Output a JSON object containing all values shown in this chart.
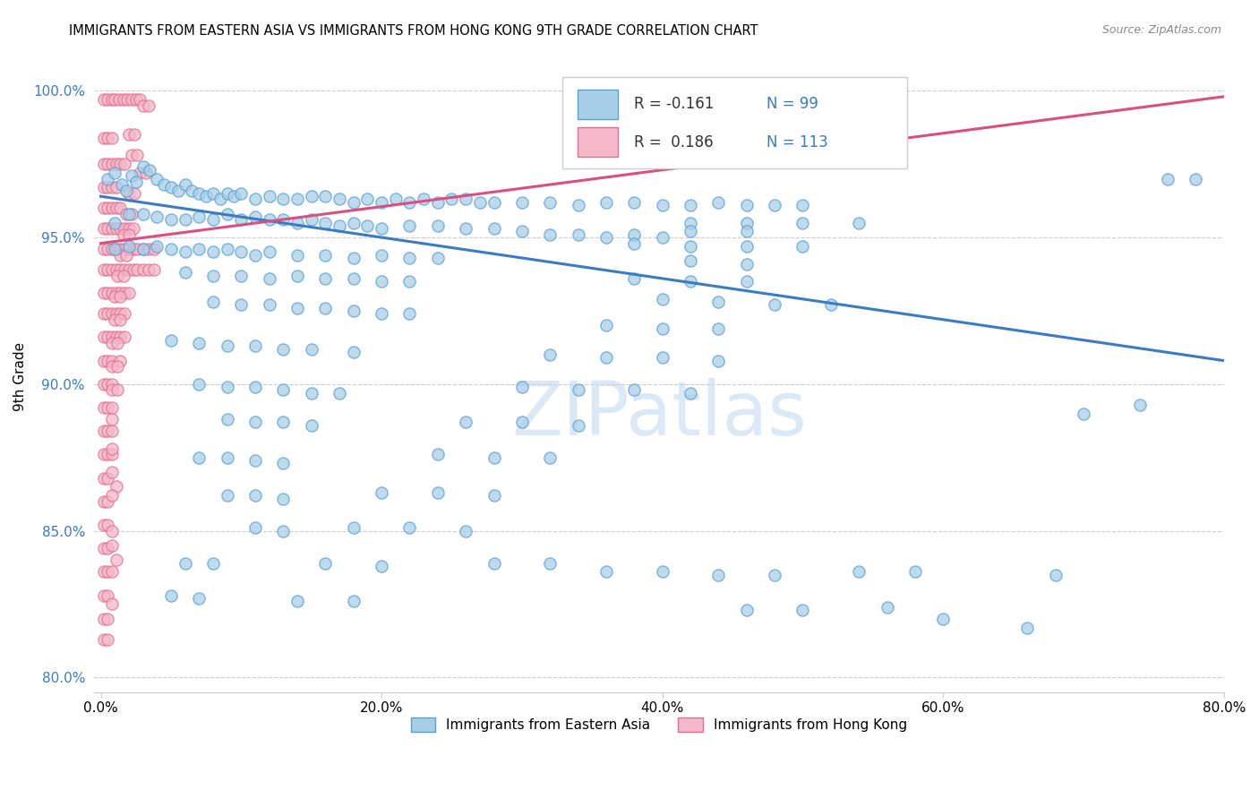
{
  "title": "IMMIGRANTS FROM EASTERN ASIA VS IMMIGRANTS FROM HONG KONG 9TH GRADE CORRELATION CHART",
  "source": "Source: ZipAtlas.com",
  "xlabel_ticks": [
    "0.0%",
    "20.0%",
    "40.0%",
    "60.0%",
    "80.0%"
  ],
  "xlabel_tick_vals": [
    0.0,
    0.2,
    0.4,
    0.6,
    0.8
  ],
  "ylabel_ticks": [
    "80.0%",
    "85.0%",
    "90.0%",
    "95.0%",
    "100.0%"
  ],
  "ylabel_tick_vals": [
    0.8,
    0.85,
    0.9,
    0.95,
    1.0
  ],
  "ylabel_label": "9th Grade",
  "legend_blue_r": "-0.161",
  "legend_blue_n": "99",
  "legend_pink_r": "0.186",
  "legend_pink_n": "113",
  "legend_blue_label": "Immigrants from Eastern Asia",
  "legend_pink_label": "Immigrants from Hong Kong",
  "blue_color": "#a8cfe8",
  "pink_color": "#f4b8ca",
  "blue_edge_color": "#5b9fd4",
  "pink_edge_color": "#e07090",
  "blue_line_color": "#3a7cbf",
  "pink_line_color": "#d95080",
  "watermark": "ZIPatlas",
  "blue_trend_x": [
    0.0,
    0.8
  ],
  "blue_trend_y": [
    0.964,
    0.908
  ],
  "pink_trend_x": [
    0.0,
    0.8
  ],
  "pink_trend_y": [
    0.948,
    0.998
  ],
  "blue_points": [
    [
      0.005,
      0.97
    ],
    [
      0.01,
      0.972
    ],
    [
      0.015,
      0.968
    ],
    [
      0.018,
      0.966
    ],
    [
      0.022,
      0.971
    ],
    [
      0.025,
      0.969
    ],
    [
      0.03,
      0.974
    ],
    [
      0.035,
      0.973
    ],
    [
      0.04,
      0.97
    ],
    [
      0.045,
      0.968
    ],
    [
      0.05,
      0.967
    ],
    [
      0.055,
      0.966
    ],
    [
      0.06,
      0.968
    ],
    [
      0.065,
      0.966
    ],
    [
      0.07,
      0.965
    ],
    [
      0.075,
      0.964
    ],
    [
      0.08,
      0.965
    ],
    [
      0.085,
      0.963
    ],
    [
      0.09,
      0.965
    ],
    [
      0.095,
      0.964
    ],
    [
      0.1,
      0.965
    ],
    [
      0.11,
      0.963
    ],
    [
      0.12,
      0.964
    ],
    [
      0.13,
      0.963
    ],
    [
      0.14,
      0.963
    ],
    [
      0.15,
      0.964
    ],
    [
      0.16,
      0.964
    ],
    [
      0.17,
      0.963
    ],
    [
      0.18,
      0.962
    ],
    [
      0.19,
      0.963
    ],
    [
      0.2,
      0.962
    ],
    [
      0.21,
      0.963
    ],
    [
      0.22,
      0.962
    ],
    [
      0.23,
      0.963
    ],
    [
      0.24,
      0.962
    ],
    [
      0.25,
      0.963
    ],
    [
      0.26,
      0.963
    ],
    [
      0.27,
      0.962
    ],
    [
      0.28,
      0.962
    ],
    [
      0.3,
      0.962
    ],
    [
      0.32,
      0.962
    ],
    [
      0.34,
      0.961
    ],
    [
      0.36,
      0.962
    ],
    [
      0.38,
      0.962
    ],
    [
      0.4,
      0.961
    ],
    [
      0.42,
      0.961
    ],
    [
      0.44,
      0.962
    ],
    [
      0.46,
      0.961
    ],
    [
      0.48,
      0.961
    ],
    [
      0.5,
      0.961
    ],
    [
      0.01,
      0.955
    ],
    [
      0.02,
      0.958
    ],
    [
      0.03,
      0.958
    ],
    [
      0.04,
      0.957
    ],
    [
      0.05,
      0.956
    ],
    [
      0.06,
      0.956
    ],
    [
      0.07,
      0.957
    ],
    [
      0.08,
      0.956
    ],
    [
      0.09,
      0.958
    ],
    [
      0.1,
      0.956
    ],
    [
      0.11,
      0.957
    ],
    [
      0.12,
      0.956
    ],
    [
      0.13,
      0.956
    ],
    [
      0.14,
      0.955
    ],
    [
      0.15,
      0.956
    ],
    [
      0.16,
      0.955
    ],
    [
      0.17,
      0.954
    ],
    [
      0.18,
      0.955
    ],
    [
      0.19,
      0.954
    ],
    [
      0.2,
      0.953
    ],
    [
      0.22,
      0.954
    ],
    [
      0.24,
      0.954
    ],
    [
      0.26,
      0.953
    ],
    [
      0.28,
      0.953
    ],
    [
      0.3,
      0.952
    ],
    [
      0.32,
      0.951
    ],
    [
      0.34,
      0.951
    ],
    [
      0.36,
      0.95
    ],
    [
      0.38,
      0.951
    ],
    [
      0.4,
      0.95
    ],
    [
      0.01,
      0.946
    ],
    [
      0.02,
      0.947
    ],
    [
      0.03,
      0.946
    ],
    [
      0.04,
      0.947
    ],
    [
      0.05,
      0.946
    ],
    [
      0.06,
      0.945
    ],
    [
      0.07,
      0.946
    ],
    [
      0.08,
      0.945
    ],
    [
      0.09,
      0.946
    ],
    [
      0.1,
      0.945
    ],
    [
      0.11,
      0.944
    ],
    [
      0.12,
      0.945
    ],
    [
      0.14,
      0.944
    ],
    [
      0.16,
      0.944
    ],
    [
      0.18,
      0.943
    ],
    [
      0.2,
      0.944
    ],
    [
      0.22,
      0.943
    ],
    [
      0.24,
      0.943
    ],
    [
      0.06,
      0.938
    ],
    [
      0.08,
      0.937
    ],
    [
      0.1,
      0.937
    ],
    [
      0.12,
      0.936
    ],
    [
      0.14,
      0.937
    ],
    [
      0.16,
      0.936
    ],
    [
      0.18,
      0.936
    ],
    [
      0.2,
      0.935
    ],
    [
      0.22,
      0.935
    ],
    [
      0.08,
      0.928
    ],
    [
      0.1,
      0.927
    ],
    [
      0.12,
      0.927
    ],
    [
      0.14,
      0.926
    ],
    [
      0.16,
      0.926
    ],
    [
      0.18,
      0.925
    ],
    [
      0.2,
      0.924
    ],
    [
      0.22,
      0.924
    ],
    [
      0.05,
      0.915
    ],
    [
      0.07,
      0.914
    ],
    [
      0.09,
      0.913
    ],
    [
      0.11,
      0.913
    ],
    [
      0.13,
      0.912
    ],
    [
      0.15,
      0.912
    ],
    [
      0.18,
      0.911
    ],
    [
      0.07,
      0.9
    ],
    [
      0.09,
      0.899
    ],
    [
      0.11,
      0.899
    ],
    [
      0.13,
      0.898
    ],
    [
      0.15,
      0.897
    ],
    [
      0.17,
      0.897
    ],
    [
      0.09,
      0.888
    ],
    [
      0.11,
      0.887
    ],
    [
      0.13,
      0.887
    ],
    [
      0.15,
      0.886
    ],
    [
      0.07,
      0.875
    ],
    [
      0.09,
      0.875
    ],
    [
      0.11,
      0.874
    ],
    [
      0.13,
      0.873
    ],
    [
      0.09,
      0.862
    ],
    [
      0.11,
      0.862
    ],
    [
      0.13,
      0.861
    ],
    [
      0.11,
      0.851
    ],
    [
      0.13,
      0.85
    ],
    [
      0.06,
      0.839
    ],
    [
      0.08,
      0.839
    ],
    [
      0.05,
      0.828
    ],
    [
      0.07,
      0.827
    ],
    [
      0.42,
      0.955
    ],
    [
      0.46,
      0.955
    ],
    [
      0.5,
      0.955
    ],
    [
      0.54,
      0.955
    ],
    [
      0.42,
      0.952
    ],
    [
      0.46,
      0.952
    ],
    [
      0.38,
      0.948
    ],
    [
      0.42,
      0.947
    ],
    [
      0.46,
      0.947
    ],
    [
      0.5,
      0.947
    ],
    [
      0.42,
      0.942
    ],
    [
      0.46,
      0.941
    ],
    [
      0.38,
      0.936
    ],
    [
      0.42,
      0.935
    ],
    [
      0.46,
      0.935
    ],
    [
      0.4,
      0.929
    ],
    [
      0.44,
      0.928
    ],
    [
      0.48,
      0.927
    ],
    [
      0.52,
      0.927
    ],
    [
      0.36,
      0.92
    ],
    [
      0.4,
      0.919
    ],
    [
      0.44,
      0.919
    ],
    [
      0.32,
      0.91
    ],
    [
      0.36,
      0.909
    ],
    [
      0.4,
      0.909
    ],
    [
      0.44,
      0.908
    ],
    [
      0.3,
      0.899
    ],
    [
      0.34,
      0.898
    ],
    [
      0.38,
      0.898
    ],
    [
      0.42,
      0.897
    ],
    [
      0.26,
      0.887
    ],
    [
      0.3,
      0.887
    ],
    [
      0.34,
      0.886
    ],
    [
      0.24,
      0.876
    ],
    [
      0.28,
      0.875
    ],
    [
      0.32,
      0.875
    ],
    [
      0.2,
      0.863
    ],
    [
      0.24,
      0.863
    ],
    [
      0.28,
      0.862
    ],
    [
      0.18,
      0.851
    ],
    [
      0.22,
      0.851
    ],
    [
      0.26,
      0.85
    ],
    [
      0.16,
      0.839
    ],
    [
      0.2,
      0.838
    ],
    [
      0.14,
      0.826
    ],
    [
      0.18,
      0.826
    ],
    [
      0.28,
      0.839
    ],
    [
      0.32,
      0.839
    ],
    [
      0.36,
      0.836
    ],
    [
      0.4,
      0.836
    ],
    [
      0.44,
      0.835
    ],
    [
      0.48,
      0.835
    ],
    [
      0.54,
      0.836
    ],
    [
      0.58,
      0.836
    ],
    [
      0.46,
      0.823
    ],
    [
      0.5,
      0.823
    ],
    [
      0.56,
      0.824
    ],
    [
      0.6,
      0.82
    ],
    [
      0.66,
      0.817
    ],
    [
      0.68,
      0.835
    ],
    [
      0.7,
      0.89
    ],
    [
      0.74,
      0.893
    ],
    [
      0.76,
      0.97
    ],
    [
      0.78,
      0.97
    ]
  ],
  "pink_points": [
    [
      0.002,
      0.997
    ],
    [
      0.005,
      0.997
    ],
    [
      0.008,
      0.997
    ],
    [
      0.01,
      0.997
    ],
    [
      0.013,
      0.997
    ],
    [
      0.016,
      0.997
    ],
    [
      0.019,
      0.997
    ],
    [
      0.022,
      0.997
    ],
    [
      0.025,
      0.997
    ],
    [
      0.028,
      0.997
    ],
    [
      0.002,
      0.984
    ],
    [
      0.005,
      0.984
    ],
    [
      0.008,
      0.984
    ],
    [
      0.002,
      0.975
    ],
    [
      0.005,
      0.975
    ],
    [
      0.008,
      0.975
    ],
    [
      0.011,
      0.975
    ],
    [
      0.014,
      0.975
    ],
    [
      0.017,
      0.975
    ],
    [
      0.002,
      0.967
    ],
    [
      0.005,
      0.967
    ],
    [
      0.008,
      0.967
    ],
    [
      0.011,
      0.967
    ],
    [
      0.002,
      0.96
    ],
    [
      0.005,
      0.96
    ],
    [
      0.008,
      0.96
    ],
    [
      0.011,
      0.96
    ],
    [
      0.014,
      0.96
    ],
    [
      0.002,
      0.953
    ],
    [
      0.005,
      0.953
    ],
    [
      0.008,
      0.953
    ],
    [
      0.011,
      0.953
    ],
    [
      0.014,
      0.953
    ],
    [
      0.017,
      0.953
    ],
    [
      0.02,
      0.953
    ],
    [
      0.023,
      0.953
    ],
    [
      0.002,
      0.946
    ],
    [
      0.005,
      0.946
    ],
    [
      0.008,
      0.946
    ],
    [
      0.011,
      0.946
    ],
    [
      0.014,
      0.946
    ],
    [
      0.017,
      0.946
    ],
    [
      0.02,
      0.946
    ],
    [
      0.023,
      0.946
    ],
    [
      0.026,
      0.946
    ],
    [
      0.03,
      0.946
    ],
    [
      0.034,
      0.946
    ],
    [
      0.038,
      0.946
    ],
    [
      0.002,
      0.939
    ],
    [
      0.005,
      0.939
    ],
    [
      0.008,
      0.939
    ],
    [
      0.011,
      0.939
    ],
    [
      0.014,
      0.939
    ],
    [
      0.017,
      0.939
    ],
    [
      0.02,
      0.939
    ],
    [
      0.023,
      0.939
    ],
    [
      0.026,
      0.939
    ],
    [
      0.03,
      0.939
    ],
    [
      0.034,
      0.939
    ],
    [
      0.038,
      0.939
    ],
    [
      0.002,
      0.931
    ],
    [
      0.005,
      0.931
    ],
    [
      0.008,
      0.931
    ],
    [
      0.011,
      0.931
    ],
    [
      0.014,
      0.931
    ],
    [
      0.017,
      0.931
    ],
    [
      0.02,
      0.931
    ],
    [
      0.002,
      0.924
    ],
    [
      0.005,
      0.924
    ],
    [
      0.008,
      0.924
    ],
    [
      0.011,
      0.924
    ],
    [
      0.014,
      0.924
    ],
    [
      0.017,
      0.924
    ],
    [
      0.002,
      0.916
    ],
    [
      0.005,
      0.916
    ],
    [
      0.008,
      0.916
    ],
    [
      0.011,
      0.916
    ],
    [
      0.014,
      0.916
    ],
    [
      0.017,
      0.916
    ],
    [
      0.002,
      0.908
    ],
    [
      0.005,
      0.908
    ],
    [
      0.008,
      0.908
    ],
    [
      0.014,
      0.908
    ],
    [
      0.002,
      0.9
    ],
    [
      0.005,
      0.9
    ],
    [
      0.008,
      0.9
    ],
    [
      0.002,
      0.892
    ],
    [
      0.005,
      0.892
    ],
    [
      0.008,
      0.892
    ],
    [
      0.002,
      0.884
    ],
    [
      0.005,
      0.884
    ],
    [
      0.008,
      0.884
    ],
    [
      0.002,
      0.876
    ],
    [
      0.005,
      0.876
    ],
    [
      0.008,
      0.876
    ],
    [
      0.002,
      0.868
    ],
    [
      0.005,
      0.868
    ],
    [
      0.002,
      0.86
    ],
    [
      0.005,
      0.86
    ],
    [
      0.002,
      0.852
    ],
    [
      0.005,
      0.852
    ],
    [
      0.002,
      0.844
    ],
    [
      0.005,
      0.844
    ],
    [
      0.002,
      0.836
    ],
    [
      0.005,
      0.836
    ],
    [
      0.002,
      0.828
    ],
    [
      0.005,
      0.828
    ],
    [
      0.002,
      0.82
    ],
    [
      0.005,
      0.82
    ],
    [
      0.002,
      0.813
    ],
    [
      0.005,
      0.813
    ],
    [
      0.008,
      0.87
    ],
    [
      0.011,
      0.865
    ],
    [
      0.008,
      0.845
    ],
    [
      0.011,
      0.84
    ],
    [
      0.008,
      0.825
    ],
    [
      0.03,
      0.995
    ],
    [
      0.034,
      0.995
    ],
    [
      0.02,
      0.985
    ],
    [
      0.024,
      0.985
    ],
    [
      0.022,
      0.978
    ],
    [
      0.026,
      0.978
    ],
    [
      0.028,
      0.972
    ],
    [
      0.032,
      0.972
    ],
    [
      0.02,
      0.965
    ],
    [
      0.024,
      0.965
    ],
    [
      0.018,
      0.958
    ],
    [
      0.022,
      0.958
    ],
    [
      0.016,
      0.951
    ],
    [
      0.02,
      0.951
    ],
    [
      0.014,
      0.944
    ],
    [
      0.018,
      0.944
    ],
    [
      0.012,
      0.937
    ],
    [
      0.016,
      0.937
    ],
    [
      0.01,
      0.93
    ],
    [
      0.014,
      0.93
    ],
    [
      0.01,
      0.922
    ],
    [
      0.014,
      0.922
    ],
    [
      0.008,
      0.914
    ],
    [
      0.012,
      0.914
    ],
    [
      0.008,
      0.906
    ],
    [
      0.012,
      0.906
    ],
    [
      0.008,
      0.898
    ],
    [
      0.012,
      0.898
    ],
    [
      0.008,
      0.888
    ],
    [
      0.008,
      0.878
    ],
    [
      0.008,
      0.862
    ],
    [
      0.008,
      0.85
    ],
    [
      0.008,
      0.836
    ]
  ]
}
